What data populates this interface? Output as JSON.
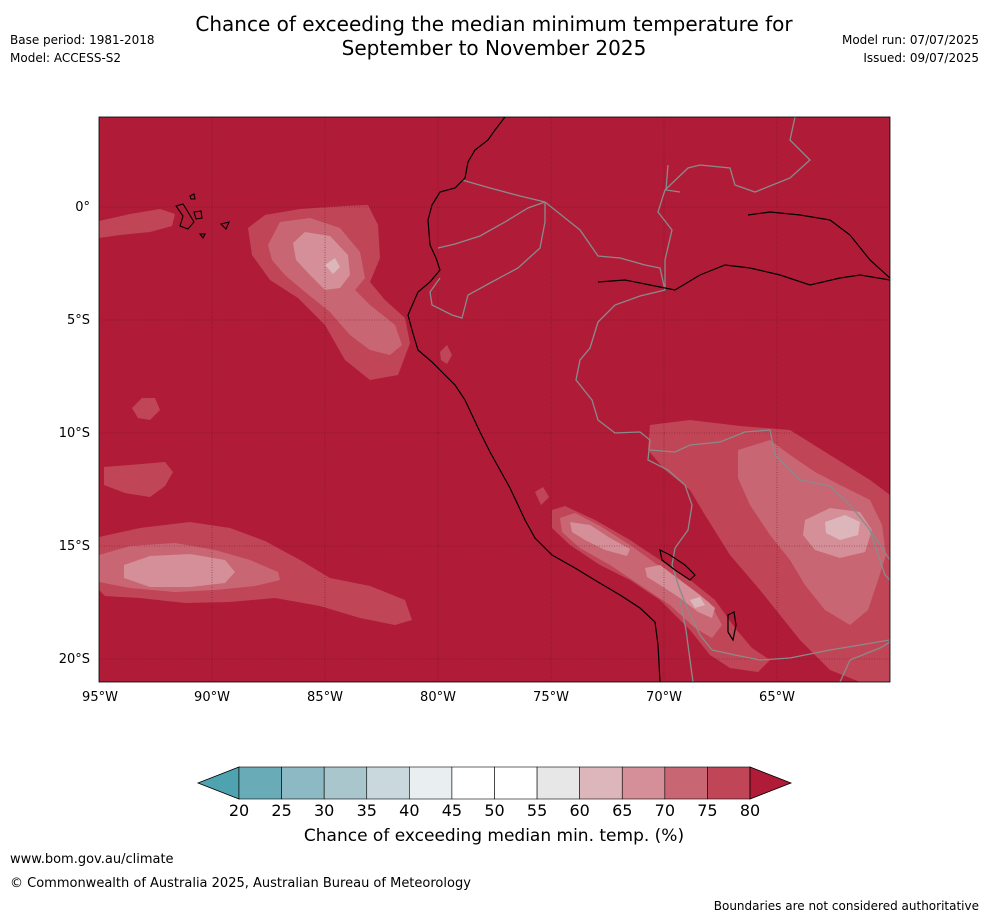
{
  "title": {
    "line1": "Chance of exceeding the median minimum temperature for",
    "line2": "September to November 2025"
  },
  "meta": {
    "base_period": "Base period: 1981-2018",
    "model": "Model: ACCESS-S2",
    "model_run": "Model run: 07/07/2025",
    "issued": "Issued: 09/07/2025"
  },
  "map": {
    "background_color": "#b01c38",
    "lon_ticks": [
      "95°W",
      "90°W",
      "85°W",
      "80°W",
      "75°W",
      "70°W",
      "65°W"
    ],
    "lat_ticks": [
      "0°",
      "5°S",
      "10°S",
      "15°S",
      "20°S"
    ],
    "gridlines": true
  },
  "colorbar": {
    "ticks": [
      "20",
      "25",
      "30",
      "35",
      "40",
      "45",
      "50",
      "55",
      "60",
      "65",
      "70",
      "75",
      "80"
    ],
    "colors": [
      "#6aabb8",
      "#8cb9c3",
      "#a9c6cc",
      "#c8d8dc",
      "#e9eff1",
      "#ffffff",
      "#ffffff",
      "#e7e7e7",
      "#ddb6bc",
      "#d58f98",
      "#c96674",
      "#c04657"
    ],
    "under_color": "#4fa3b1",
    "over_color": "#b01c38",
    "label": "Chance of exceeding median min. temp. (%)"
  },
  "footer": {
    "url": "www.bom.gov.au/climate",
    "copyright": "© Commonwealth of Australia 2025, Australian Bureau of Meteorology",
    "note": "Boundaries are not considered authoritative"
  }
}
